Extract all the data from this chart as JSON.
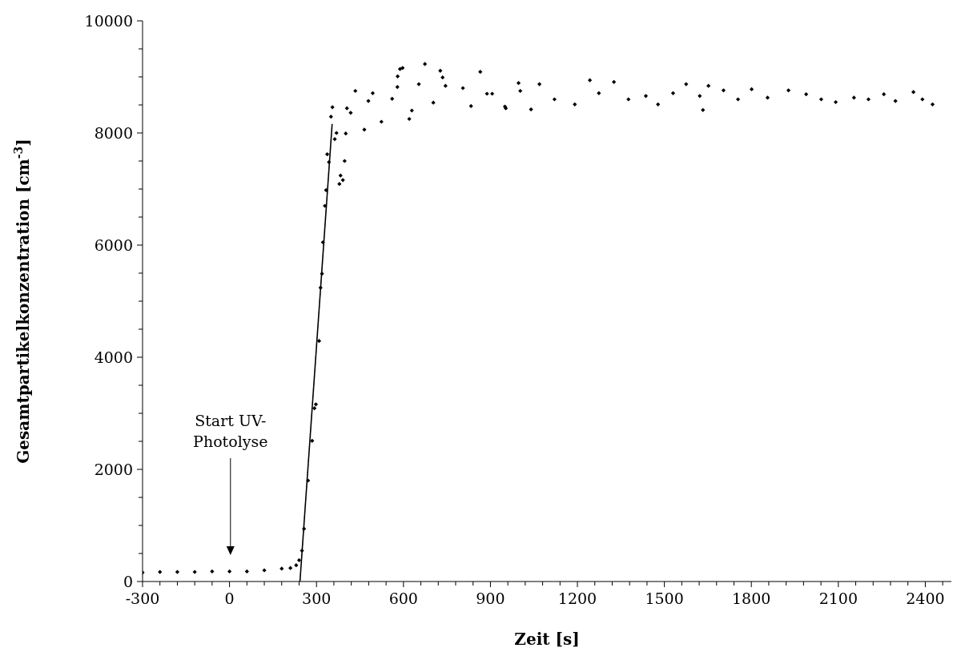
{
  "chart_data": {
    "type": "scatter",
    "xlabel": "Zeit [s]",
    "ylabel": "Gesamtpartikelkonzentration [cm$^{-3}$]",
    "xlim": [
      -300,
      2490
    ],
    "ylim": [
      0,
      10000
    ],
    "xticks": [
      -300,
      {
        "value": -240,
        "label": null
      },
      {
        "value": -180,
        "label": null
      },
      {
        "value": -120,
        "label": null
      },
      {
        "value": -60,
        "label": null
      },
      0,
      {
        "value": 60,
        "label": null
      },
      {
        "value": 120,
        "label": null
      },
      {
        "value": 180,
        "label": null
      },
      {
        "value": 240,
        "label": null
      },
      300,
      {
        "value": 360,
        "label": null
      },
      {
        "value": 420,
        "label": null
      },
      {
        "value": 480,
        "label": null
      },
      {
        "value": 540,
        "label": null
      },
      600,
      {
        "value": 660,
        "label": null
      },
      {
        "value": 720,
        "label": null
      },
      {
        "value": 780,
        "label": null
      },
      {
        "value": 840,
        "label": null
      },
      900,
      {
        "value": 960,
        "label": null
      },
      {
        "value": 1020,
        "label": null
      },
      {
        "value": 1080,
        "label": null
      },
      {
        "value": 1140,
        "label": null
      },
      1200,
      {
        "value": 1260,
        "label": null
      },
      {
        "value": 1320,
        "label": null
      },
      {
        "value": 1380,
        "label": null
      },
      {
        "value": 1440,
        "label": null
      },
      1500,
      {
        "value": 1560,
        "label": null
      },
      {
        "value": 1620,
        "label": null
      },
      {
        "value": 1680,
        "label": null
      },
      {
        "value": 1740,
        "label": null
      },
      1800,
      {
        "value": 1860,
        "label": null
      },
      {
        "value": 1920,
        "label": null
      },
      {
        "value": 1980,
        "label": null
      },
      {
        "value": 2040,
        "label": null
      },
      2100,
      {
        "value": 2160,
        "label": null
      },
      {
        "value": 2220,
        "label": null
      },
      {
        "value": 2280,
        "label": null
      },
      {
        "value": 2340,
        "label": null
      },
      2400,
      {
        "value": 2460,
        "label": null
      }
    ],
    "yticks": [
      0,
      {
        "value": 500,
        "label": null
      },
      {
        "value": 1000,
        "label": null
      },
      {
        "value": 1500,
        "label": null
      },
      2000,
      {
        "value": 2500,
        "label": null
      },
      {
        "value": 3000,
        "label": null
      },
      {
        "value": 3500,
        "label": null
      },
      4000,
      {
        "value": 4500,
        "label": null
      },
      {
        "value": 5000,
        "label": null
      },
      {
        "value": 5500,
        "label": null
      },
      6000,
      {
        "value": 6500,
        "label": null
      },
      {
        "value": 7000,
        "label": null
      },
      {
        "value": 7500,
        "label": null
      },
      8000,
      {
        "value": 8500,
        "label": null
      },
      {
        "value": 9000,
        "label": null
      },
      {
        "value": 9500,
        "label": null
      },
      10000
    ],
    "marker": "diamond",
    "series": [
      {
        "color": "#000000",
        "x": [
          -300,
          -240,
          -180,
          -120,
          -60,
          0,
          60,
          120,
          180,
          210,
          230,
          240,
          250,
          257,
          271,
          285,
          293,
          298,
          309,
          314,
          319,
          322,
          329,
          333,
          337,
          343,
          350,
          355,
          363,
          369,
          379,
          383,
          391,
          397,
          401,
          405,
          418,
          434,
          465,
          479,
          494,
          524,
          561,
          579,
          580,
          588,
          597,
          620,
          629,
          653,
          674,
          703,
          727,
          735,
          745,
          805,
          833,
          865,
          888,
          906,
          950,
          953,
          997,
          1003,
          1040,
          1069,
          1121,
          1191,
          1243,
          1274,
          1326,
          1376,
          1436,
          1478,
          1530,
          1575,
          1622,
          1633,
          1652,
          1704,
          1754,
          1801,
          1856,
          1928,
          1989,
          2041,
          2091,
          2154,
          2204,
          2257,
          2297,
          2359,
          2390,
          2425
        ],
        "values": [
          160,
          170,
          170,
          170,
          180,
          180,
          180,
          200,
          230,
          240,
          290,
          380,
          550,
          940,
          1800,
          2510,
          3090,
          3160,
          4290,
          5240,
          5490,
          6050,
          6700,
          6980,
          7620,
          7480,
          8290,
          8460,
          7890,
          8000,
          7090,
          7240,
          7160,
          7500,
          7990,
          8440,
          8360,
          8750,
          8060,
          8570,
          8710,
          8200,
          8610,
          8820,
          9010,
          9140,
          9160,
          8250,
          8400,
          8870,
          9230,
          8540,
          9110,
          8990,
          8840,
          8800,
          8480,
          9090,
          8700,
          8700,
          8470,
          8440,
          8890,
          8750,
          8420,
          8870,
          8600,
          8510,
          8940,
          8710,
          8910,
          8600,
          8660,
          8510,
          8710,
          8870,
          8660,
          8410,
          8840,
          8760,
          8600,
          8780,
          8630,
          8760,
          8690,
          8600,
          8550,
          8630,
          8600,
          8690,
          8570,
          8730,
          8600,
          8510
        ]
      },
      {
        "type": "line",
        "color": "#000000",
        "x": [
          243,
          354
        ],
        "values": [
          0,
          8160
        ],
        "marker": "none"
      }
    ],
    "annotations": [
      "Start UV-\nPhotolyse"
    ]
  }
}
